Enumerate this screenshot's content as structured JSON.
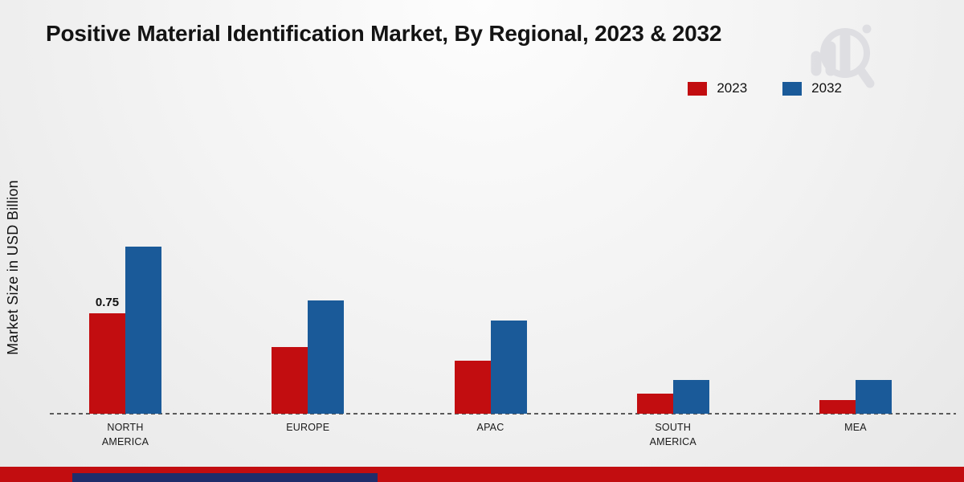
{
  "page": {
    "title": "Positive Material Identification Market, By Regional, 2023 & 2032"
  },
  "chart_data": {
    "type": "bar",
    "title": "Positive Material Identification Market, By Regional, 2023 & 2032",
    "xlabel": "",
    "ylabel": "Market Size in USD Billion",
    "categories": [
      "NORTH AMERICA",
      "EUROPE",
      "APAC",
      "SOUTH AMERICA",
      "MEA"
    ],
    "series": [
      {
        "name": "2023",
        "color": "#c20d10",
        "values": [
          0.75,
          0.5,
          0.4,
          0.15,
          0.1
        ]
      },
      {
        "name": "2032",
        "color": "#1a5a99",
        "values": [
          1.25,
          0.85,
          0.7,
          0.25,
          0.25
        ]
      }
    ],
    "bar_labels": [
      {
        "series_index": 0,
        "category_index": 0,
        "text": "0.75"
      }
    ],
    "ylim": [
      0,
      1.4
    ],
    "grid": false,
    "baseline_style": "dashed",
    "legend_position": "top-right"
  },
  "footer": {
    "bar_color": "#c20d10",
    "accent_color": "#1f2d6b"
  },
  "watermark": {
    "name": "bar-chart-magnifier-logo",
    "color": "#cfcfd6"
  }
}
